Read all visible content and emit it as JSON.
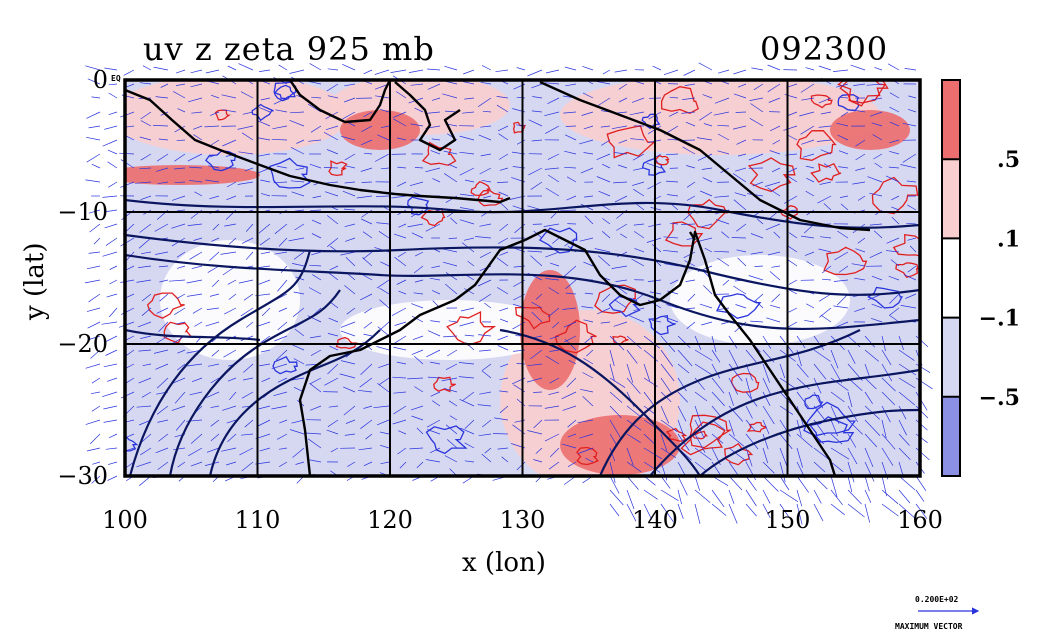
{
  "title_left": "uv z zeta 925 mb",
  "title_right": "092300",
  "xlabel": "x (lon)",
  "ylabel": "y (lat)",
  "colors": {
    "high": "#ec6e6e",
    "midhigh": "#f9cece",
    "neutral": "#ffffff",
    "midlow": "#d6d8f2",
    "low": "#8c90e4",
    "vector": "#2a34dd",
    "contour": "#0b1660",
    "coast": "#000000",
    "zeta_pos": "#e02020"
  },
  "chart_data": {
    "type": "heatmap",
    "title": "uv z zeta 925 mb",
    "subtitle": "092300",
    "xlabel": "x (lon)",
    "ylabel": "y (lat)",
    "xlim": [
      100,
      160
    ],
    "ylim": [
      -30,
      0
    ],
    "xticks": [
      "100",
      "110",
      "120",
      "130",
      "140",
      "150",
      "160"
    ],
    "yticks": [
      "0",
      "−10",
      "−20",
      "−30"
    ],
    "grid": true,
    "colorbar": {
      "labels": [
        ".5",
        ".1",
        "−.1",
        "−.5"
      ],
      "levels": [
        -0.5,
        -0.1,
        0.1,
        0.5
      ]
    },
    "vector_reference": {
      "value": "0.200E+02",
      "label": "MAXIMUM VECTOR"
    },
    "corner_label": "EQ"
  }
}
